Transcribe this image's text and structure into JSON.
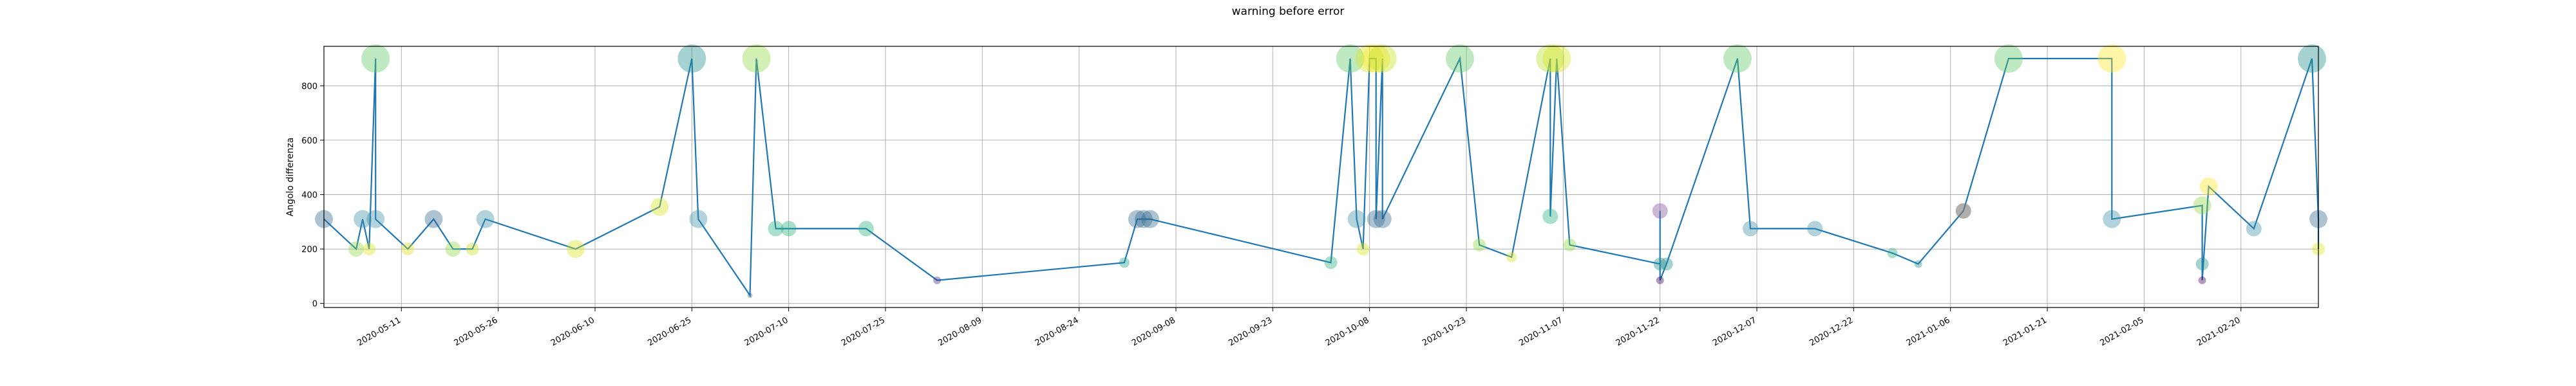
{
  "chart_data": {
    "type": "scatter",
    "title": "warning before error",
    "xlabel": "",
    "ylabel": "Angolo differenza",
    "grid": true,
    "xlim": [
      "2020-04-29",
      "2021-03-04"
    ],
    "ylim": [
      -15,
      945
    ],
    "yticks": [
      0,
      200,
      400,
      600,
      800
    ],
    "xticks": [
      "2020-05-11",
      "2020-05-26",
      "2020-06-10",
      "2020-06-25",
      "2020-07-10",
      "2020-07-25",
      "2020-08-09",
      "2020-08-24",
      "2020-09-08",
      "2020-09-23",
      "2020-10-08",
      "2020-10-23",
      "2020-11-07",
      "2020-11-22",
      "2020-12-07",
      "2020-12-22",
      "2021-01-06",
      "2021-01-21",
      "2021-02-05",
      "2021-02-20"
    ],
    "line_color": "#1f77b4",
    "series": [
      {
        "points": [
          {
            "x": "2020-04-29",
            "y": 310,
            "c": "#31688e",
            "s": 14
          },
          {
            "x": "2020-05-04",
            "y": 200,
            "c": "#8fd744",
            "s": 12
          },
          {
            "x": "2020-05-05",
            "y": 310,
            "c": "#3e8fa8",
            "s": 14
          },
          {
            "x": "2020-05-06",
            "y": 200,
            "c": "#d9e520",
            "s": 10
          },
          {
            "x": "2020-05-07",
            "y": 900,
            "c": "#5ec962",
            "s": 22
          },
          {
            "x": "2020-05-07",
            "y": 310,
            "c": "#3e8fa8",
            "s": 14
          },
          {
            "x": "2020-05-12",
            "y": 200,
            "c": "#d9e520",
            "s": 10
          },
          {
            "x": "2020-05-16",
            "y": 310,
            "c": "#31688e",
            "s": 14
          },
          {
            "x": "2020-05-19",
            "y": 200,
            "c": "#8fd744",
            "s": 12
          },
          {
            "x": "2020-05-22",
            "y": 200,
            "c": "#c7e020",
            "s": 10
          },
          {
            "x": "2020-05-24",
            "y": 310,
            "c": "#3e8fa8",
            "s": 14
          },
          {
            "x": "2020-06-07",
            "y": 200,
            "c": "#d9e520",
            "s": 14
          },
          {
            "x": "2020-06-20",
            "y": 355,
            "c": "#d9e520",
            "s": 14
          },
          {
            "x": "2020-06-25",
            "y": 900,
            "c": "#21918c",
            "s": 22
          },
          {
            "x": "2020-06-26",
            "y": 310,
            "c": "#3e8fa8",
            "s": 14
          },
          {
            "x": "2020-07-04",
            "y": 30,
            "c": "#31688e",
            "s": 4
          },
          {
            "x": "2020-07-05",
            "y": 900,
            "c": "#8fd744",
            "s": 22
          },
          {
            "x": "2020-07-08",
            "y": 275,
            "c": "#2ab07f",
            "s": 12
          },
          {
            "x": "2020-07-10",
            "y": 275,
            "c": "#2ab07f",
            "s": 12
          },
          {
            "x": "2020-07-22",
            "y": 275,
            "c": "#2ab07f",
            "s": 12
          },
          {
            "x": "2020-08-02",
            "y": 85,
            "c": "#46327e",
            "s": 6
          },
          {
            "x": "2020-08-31",
            "y": 150,
            "c": "#1f9e89",
            "s": 8
          },
          {
            "x": "2020-09-02",
            "y": 310,
            "c": "#31688e",
            "s": 14
          },
          {
            "x": "2020-09-03",
            "y": 310,
            "c": "#31688e",
            "s": 14
          },
          {
            "x": "2020-09-04",
            "y": 310,
            "c": "#31688e",
            "s": 14
          },
          {
            "x": "2020-10-02",
            "y": 150,
            "c": "#2ab07f",
            "s": 10
          },
          {
            "x": "2020-10-05",
            "y": 900,
            "c": "#5ec962",
            "s": 22
          },
          {
            "x": "2020-10-06",
            "y": 310,
            "c": "#3e8fa8",
            "s": 14
          },
          {
            "x": "2020-10-07",
            "y": 200,
            "c": "#d9e520",
            "s": 10
          },
          {
            "x": "2020-10-08",
            "y": 900,
            "c": "#d9e520",
            "s": 22
          },
          {
            "x": "2020-10-09",
            "y": 900,
            "c": "#fde725",
            "s": 22
          },
          {
            "x": "2020-10-09",
            "y": 310,
            "c": "#31688e",
            "s": 14
          },
          {
            "x": "2020-10-10",
            "y": 900,
            "c": "#c7e020",
            "s": 22
          },
          {
            "x": "2020-10-10",
            "y": 310,
            "c": "#31688e",
            "s": 14
          },
          {
            "x": "2020-10-22",
            "y": 900,
            "c": "#5ec962",
            "s": 22
          },
          {
            "x": "2020-10-25",
            "y": 215,
            "c": "#8fd744",
            "s": 10
          },
          {
            "x": "2020-10-30",
            "y": 170,
            "c": "#d9e520",
            "s": 8
          },
          {
            "x": "2020-11-05",
            "y": 900,
            "c": "#b5de2b",
            "s": 22
          },
          {
            "x": "2020-11-05",
            "y": 320,
            "c": "#2ab07f",
            "s": 12
          },
          {
            "x": "2020-11-06",
            "y": 900,
            "c": "#d9e520",
            "s": 22
          },
          {
            "x": "2020-11-08",
            "y": 215,
            "c": "#8fd744",
            "s": 10
          },
          {
            "x": "2020-11-22",
            "y": 145,
            "c": "#21918c",
            "s": 10
          },
          {
            "x": "2020-11-22",
            "y": 340,
            "c": "#7e4e9c",
            "s": 12
          },
          {
            "x": "2020-11-22",
            "y": 85,
            "c": "#440154",
            "s": 6
          },
          {
            "x": "2020-11-23",
            "y": 145,
            "c": "#21918c",
            "s": 10
          },
          {
            "x": "2020-12-04",
            "y": 900,
            "c": "#5ec962",
            "s": 22
          },
          {
            "x": "2020-12-06",
            "y": 275,
            "c": "#3e8fa8",
            "s": 12
          },
          {
            "x": "2020-12-16",
            "y": 275,
            "c": "#3e8fa8",
            "s": 12
          },
          {
            "x": "2020-12-28",
            "y": 185,
            "c": "#2ab07f",
            "s": 8
          },
          {
            "x": "2021-01-01",
            "y": 145,
            "c": "#21918c",
            "s": 6
          },
          {
            "x": "2021-01-08",
            "y": 340,
            "c": "#8fd744",
            "s": 12
          },
          {
            "x": "2021-01-08",
            "y": 340,
            "c": "#7e4e9c",
            "s": 12
          },
          {
            "x": "2021-01-15",
            "y": 900,
            "c": "#5ec962",
            "s": 22
          },
          {
            "x": "2021-01-31",
            "y": 900,
            "c": "#fde725",
            "s": 22
          },
          {
            "x": "2021-01-31",
            "y": 310,
            "c": "#3e8fa8",
            "s": 14
          },
          {
            "x": "2021-02-14",
            "y": 360,
            "c": "#8fd744",
            "s": 14
          },
          {
            "x": "2021-02-14",
            "y": 145,
            "c": "#21918c",
            "s": 10
          },
          {
            "x": "2021-02-14",
            "y": 85,
            "c": "#440154",
            "s": 6
          },
          {
            "x": "2021-02-15",
            "y": 430,
            "c": "#fde725",
            "s": 14
          },
          {
            "x": "2021-02-22",
            "y": 275,
            "c": "#3e8fa8",
            "s": 12
          },
          {
            "x": "2021-03-03",
            "y": 900,
            "c": "#21918c",
            "s": 22
          },
          {
            "x": "2021-03-04",
            "y": 310,
            "c": "#31688e",
            "s": 14
          },
          {
            "x": "2021-03-04",
            "y": 200,
            "c": "#d9e520",
            "s": 10
          }
        ]
      }
    ]
  }
}
